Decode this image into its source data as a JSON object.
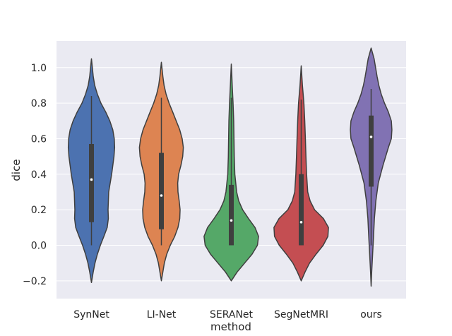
{
  "chart_data": {
    "type": "violin",
    "xlabel": "method",
    "ylabel": "dice",
    "ylim": [
      -0.3,
      1.15
    ],
    "yticks": [
      -0.2,
      0.0,
      0.2,
      0.4,
      0.6,
      0.8,
      1.0
    ],
    "ytick_labels": [
      "−0.2",
      "0.0",
      "0.2",
      "0.4",
      "0.6",
      "0.8",
      "1.0"
    ],
    "grid": true,
    "categories": [
      "SynNet",
      "LI-Net",
      "SERANet",
      "SegNetMRI",
      "ours"
    ],
    "colors": [
      "#4c72b0",
      "#dd8452",
      "#55a868",
      "#c44e52",
      "#8172b3"
    ],
    "series": [
      {
        "median": 0.37,
        "q1": 0.13,
        "q3": 0.57,
        "whisker_low": 0.0,
        "whisker_high": 0.84,
        "density": [
          [
            -0.21,
            0.0
          ],
          [
            -0.15,
            0.06
          ],
          [
            -0.1,
            0.12
          ],
          [
            -0.05,
            0.2
          ],
          [
            0.0,
            0.3
          ],
          [
            0.05,
            0.42
          ],
          [
            0.1,
            0.53
          ],
          [
            0.15,
            0.57
          ],
          [
            0.2,
            0.56
          ],
          [
            0.3,
            0.58
          ],
          [
            0.4,
            0.68
          ],
          [
            0.5,
            0.76
          ],
          [
            0.55,
            0.78
          ],
          [
            0.6,
            0.77
          ],
          [
            0.65,
            0.72
          ],
          [
            0.7,
            0.62
          ],
          [
            0.75,
            0.48
          ],
          [
            0.8,
            0.32
          ],
          [
            0.85,
            0.2
          ],
          [
            0.9,
            0.11
          ],
          [
            0.95,
            0.06
          ],
          [
            1.0,
            0.03
          ],
          [
            1.05,
            0.0
          ]
        ]
      },
      {
        "median": 0.28,
        "q1": 0.09,
        "q3": 0.52,
        "whisker_low": 0.0,
        "whisker_high": 0.83,
        "density": [
          [
            -0.2,
            0.0
          ],
          [
            -0.15,
            0.05
          ],
          [
            -0.1,
            0.1
          ],
          [
            -0.05,
            0.18
          ],
          [
            0.0,
            0.3
          ],
          [
            0.05,
            0.45
          ],
          [
            0.1,
            0.56
          ],
          [
            0.15,
            0.62
          ],
          [
            0.2,
            0.63
          ],
          [
            0.25,
            0.6
          ],
          [
            0.3,
            0.56
          ],
          [
            0.35,
            0.55
          ],
          [
            0.4,
            0.58
          ],
          [
            0.45,
            0.66
          ],
          [
            0.5,
            0.72
          ],
          [
            0.55,
            0.74
          ],
          [
            0.6,
            0.7
          ],
          [
            0.65,
            0.62
          ],
          [
            0.7,
            0.5
          ],
          [
            0.75,
            0.38
          ],
          [
            0.8,
            0.26
          ],
          [
            0.85,
            0.16
          ],
          [
            0.9,
            0.09
          ],
          [
            0.95,
            0.05
          ],
          [
            1.03,
            0.0
          ]
        ]
      },
      {
        "median": 0.14,
        "q1": 0.0,
        "q3": 0.34,
        "whisker_low": 0.0,
        "whisker_high": 0.83,
        "density": [
          [
            -0.2,
            0.0
          ],
          [
            -0.15,
            0.2
          ],
          [
            -0.1,
            0.45
          ],
          [
            -0.05,
            0.7
          ],
          [
            0.0,
            0.88
          ],
          [
            0.05,
            0.92
          ],
          [
            0.1,
            0.8
          ],
          [
            0.15,
            0.58
          ],
          [
            0.2,
            0.38
          ],
          [
            0.25,
            0.25
          ],
          [
            0.3,
            0.18
          ],
          [
            0.4,
            0.12
          ],
          [
            0.5,
            0.1
          ],
          [
            0.6,
            0.09
          ],
          [
            0.7,
            0.08
          ],
          [
            0.8,
            0.06
          ],
          [
            0.9,
            0.03
          ],
          [
            0.95,
            0.02
          ],
          [
            1.02,
            0.0
          ]
        ]
      },
      {
        "median": 0.13,
        "q1": 0.0,
        "q3": 0.4,
        "whisker_low": 0.0,
        "whisker_high": 0.82,
        "density": [
          [
            -0.2,
            0.0
          ],
          [
            -0.15,
            0.13
          ],
          [
            -0.1,
            0.28
          ],
          [
            -0.05,
            0.5
          ],
          [
            0.0,
            0.74
          ],
          [
            0.05,
            0.9
          ],
          [
            0.1,
            0.92
          ],
          [
            0.15,
            0.75
          ],
          [
            0.2,
            0.45
          ],
          [
            0.25,
            0.3
          ],
          [
            0.3,
            0.22
          ],
          [
            0.4,
            0.18
          ],
          [
            0.5,
            0.16
          ],
          [
            0.6,
            0.14
          ],
          [
            0.7,
            0.12
          ],
          [
            0.8,
            0.09
          ],
          [
            0.9,
            0.04
          ],
          [
            1.01,
            0.0
          ]
        ]
      },
      {
        "median": 0.61,
        "q1": 0.33,
        "q3": 0.73,
        "whisker_low": 0.0,
        "whisker_high": 0.88,
        "density": [
          [
            -0.23,
            0.0
          ],
          [
            -0.15,
            0.02
          ],
          [
            -0.05,
            0.05
          ],
          [
            0.05,
            0.08
          ],
          [
            0.15,
            0.11
          ],
          [
            0.25,
            0.16
          ],
          [
            0.35,
            0.24
          ],
          [
            0.45,
            0.4
          ],
          [
            0.55,
            0.58
          ],
          [
            0.6,
            0.68
          ],
          [
            0.65,
            0.7
          ],
          [
            0.7,
            0.68
          ],
          [
            0.75,
            0.58
          ],
          [
            0.8,
            0.45
          ],
          [
            0.85,
            0.34
          ],
          [
            0.9,
            0.26
          ],
          [
            0.95,
            0.2
          ],
          [
            1.0,
            0.15
          ],
          [
            1.05,
            0.1
          ],
          [
            1.11,
            0.0
          ]
        ]
      }
    ]
  }
}
